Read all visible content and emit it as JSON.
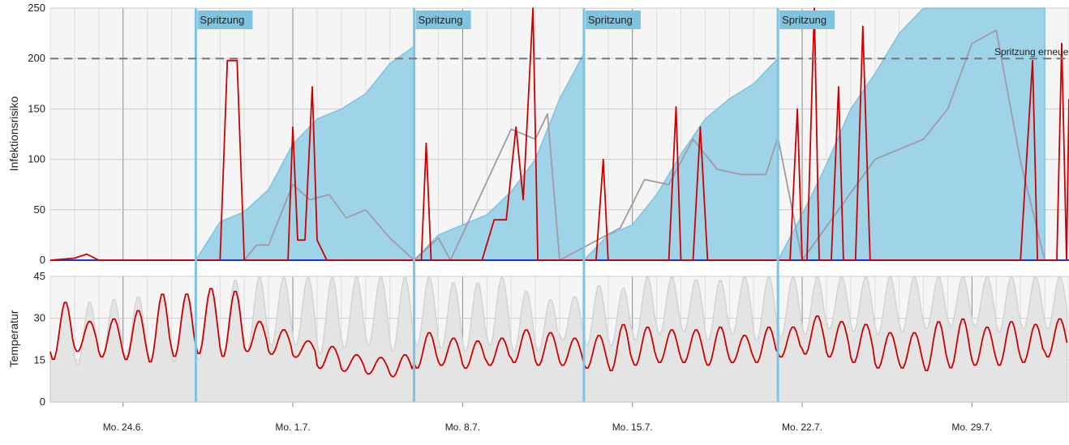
{
  "chart_data": [
    {
      "type": "area",
      "ylabel": "Infektionsrisiko",
      "ylim": [
        0,
        250
      ],
      "yticks": [
        0,
        50,
        100,
        150,
        200,
        250
      ],
      "xlim": [
        "2024-06-21",
        "2024-08-02"
      ],
      "threshold": {
        "value": 200,
        "label": "Spritzung erneuern"
      },
      "sprays": [
        {
          "date": "2024-06-27",
          "label": "Spritzung"
        },
        {
          "date": "2024-07-06",
          "label": "Spritzung"
        },
        {
          "date": "2024-07-13",
          "label": "Spritzung"
        },
        {
          "date": "2024-07-21",
          "label": "Spritzung"
        }
      ],
      "cumulative_risk": {
        "color": "#9fd3e8",
        "points": [
          [
            "2024-06-27",
            0
          ],
          [
            "2024-06-28",
            38
          ],
          [
            "2024-06-29",
            48
          ],
          [
            "2024-06-30",
            70
          ],
          [
            "2024-07-01",
            115
          ],
          [
            "2024-07-02",
            140
          ],
          [
            "2024-07-03",
            150
          ],
          [
            "2024-07-04",
            165
          ],
          [
            "2024-07-05",
            195
          ],
          [
            "2024-07-06",
            212
          ],
          [
            "2024-07-06",
            0
          ],
          [
            "2024-07-07",
            25
          ],
          [
            "2024-07-08",
            35
          ],
          [
            "2024-07-09",
            45
          ],
          [
            "2024-07-10",
            68
          ],
          [
            "2024-07-11",
            100
          ],
          [
            "2024-07-12",
            160
          ],
          [
            "2024-07-13",
            205
          ],
          [
            "2024-07-13",
            0
          ],
          [
            "2024-07-14",
            25
          ],
          [
            "2024-07-15",
            35
          ],
          [
            "2024-07-16",
            65
          ],
          [
            "2024-07-17",
            105
          ],
          [
            "2024-07-18",
            140
          ],
          [
            "2024-07-19",
            160
          ],
          [
            "2024-07-20",
            175
          ],
          [
            "2024-07-21",
            200
          ],
          [
            "2024-07-21",
            0
          ],
          [
            "2024-07-22",
            45
          ],
          [
            "2024-07-23",
            95
          ],
          [
            "2024-07-24",
            150
          ],
          [
            "2024-07-25",
            185
          ],
          [
            "2024-07-26",
            225
          ],
          [
            "2024-07-27",
            250
          ],
          [
            "2024-08-01",
            250
          ],
          [
            "2024-08-01",
            0
          ]
        ]
      },
      "series": [
        {
          "name": "",
          "color": "#cc0000",
          "points": [
            [
              "2024-06-21",
              0
            ],
            [
              "2024-06-22",
              2
            ],
            [
              "2024-06-22.5",
              6
            ],
            [
              "2024-06-23",
              0
            ],
            [
              "2024-06-27",
              0
            ],
            [
              "2024-06-28",
              0
            ],
            [
              "2024-06-28.3",
              198
            ],
            [
              "2024-06-28.7",
              198
            ],
            [
              "2024-06-29",
              0
            ],
            [
              "2024-06-30.8",
              0
            ],
            [
              "2024-07-01",
              132
            ],
            [
              "2024-07-01.2",
              20
            ],
            [
              "2024-07-01.5",
              20
            ],
            [
              "2024-07-01.8",
              172
            ],
            [
              "2024-07-02",
              20
            ],
            [
              "2024-07-02.4",
              0
            ],
            [
              "2024-07-06.3",
              0
            ],
            [
              "2024-07-06.5",
              116
            ],
            [
              "2024-07-06.7",
              0
            ],
            [
              "2024-07-08.8",
              0
            ],
            [
              "2024-07-09.3",
              40
            ],
            [
              "2024-07-09.8",
              40
            ],
            [
              "2024-07-10.2",
              132
            ],
            [
              "2024-07-10.5",
              60
            ],
            [
              "2024-07-10.9",
              250
            ],
            [
              "2024-07-11.1",
              0
            ],
            [
              "2024-07-13.5",
              0
            ],
            [
              "2024-07-13.8",
              100
            ],
            [
              "2024-07-14",
              0
            ],
            [
              "2024-07-16.5",
              0
            ],
            [
              "2024-07-16.8",
              152
            ],
            [
              "2024-07-17",
              0
            ],
            [
              "2024-07-17.5",
              0
            ],
            [
              "2024-07-17.8",
              132
            ],
            [
              "2024-07-18.1",
              0
            ],
            [
              "2024-07-21.5",
              0
            ],
            [
              "2024-07-21.8",
              150
            ],
            [
              "2024-07-22",
              0
            ],
            [
              "2024-07-22.2",
              0
            ],
            [
              "2024-07-22.5",
              250
            ],
            [
              "2024-07-22.7",
              0
            ],
            [
              "2024-07-23.2",
              0
            ],
            [
              "2024-07-23.5",
              172
            ],
            [
              "2024-07-23.7",
              0
            ],
            [
              "2024-07-24.2",
              0
            ],
            [
              "2024-07-24.5",
              232
            ],
            [
              "2024-07-24.8",
              0
            ],
            [
              "2024-07-31",
              0
            ],
            [
              "2024-07-31.5",
              198
            ],
            [
              "2024-07-31.7",
              0
            ],
            [
              "2024-08-01.5",
              0
            ],
            [
              "2024-08-01.7",
              215
            ],
            [
              "2024-08-01.9",
              0
            ],
            [
              "2024-08-02",
              160
            ]
          ]
        },
        {
          "name": "",
          "color": "#a09aa8",
          "points": [
            [
              "2024-06-29",
              0
            ],
            [
              "2024-06-29.5",
              15
            ],
            [
              "2024-06-30",
              15
            ],
            [
              "2024-07-01",
              75
            ],
            [
              "2024-07-01.7",
              60
            ],
            [
              "2024-07-02.5",
              65
            ],
            [
              "2024-07-03.2",
              42
            ],
            [
              "2024-07-04",
              50
            ],
            [
              "2024-07-05",
              22
            ],
            [
              "2024-07-06",
              0
            ],
            [
              "2024-07-07",
              22
            ],
            [
              "2024-07-07.5",
              0
            ],
            [
              "2024-07-10",
              130
            ],
            [
              "2024-07-11",
              120
            ],
            [
              "2024-07-11.5",
              145
            ],
            [
              "2024-07-12",
              0
            ],
            [
              "2024-07-14.5",
              32
            ],
            [
              "2024-07-15.5",
              80
            ],
            [
              "2024-07-16.5",
              75
            ],
            [
              "2024-07-17.5",
              120
            ],
            [
              "2024-07-18.5",
              90
            ],
            [
              "2024-07-19.5",
              85
            ],
            [
              "2024-07-20.5",
              85
            ],
            [
              "2024-07-21",
              122
            ],
            [
              "2024-07-22",
              0
            ],
            [
              "2024-07-25",
              100
            ],
            [
              "2024-07-26",
              110
            ],
            [
              "2024-07-27",
              120
            ],
            [
              "2024-07-28",
              150
            ],
            [
              "2024-07-29",
              215
            ],
            [
              "2024-07-30",
              228
            ],
            [
              "2024-07-31",
              98
            ],
            [
              "2024-08-01",
              0
            ]
          ]
        }
      ]
    },
    {
      "type": "line",
      "ylabel": "Temperatur",
      "ylim": [
        0,
        45
      ],
      "yticks": [
        0,
        15,
        30,
        45
      ],
      "xlim": [
        "2024-06-21",
        "2024-08-02"
      ],
      "xticks": [
        {
          "date": "2024-06-24",
          "label": "Mo. 24.6."
        },
        {
          "date": "2024-07-01",
          "label": "Mo. 1.7."
        },
        {
          "date": "2024-07-08",
          "label": "Mo. 8.7."
        },
        {
          "date": "2024-07-15",
          "label": "Mo. 15.7."
        },
        {
          "date": "2024-07-22",
          "label": "Mo. 22.7."
        },
        {
          "date": "2024-07-29",
          "label": "Mo. 29.7."
        }
      ],
      "series": [
        {
          "name": "",
          "color": "#cc0000",
          "daily_max": [
            36,
            29,
            30,
            33,
            39,
            39,
            41,
            40,
            29,
            26,
            22,
            20,
            17,
            16,
            17,
            25,
            23,
            22,
            23,
            26,
            25,
            23,
            24,
            28,
            27,
            26,
            26,
            27,
            24,
            27,
            27,
            31,
            29,
            28,
            25,
            25,
            29,
            30,
            27,
            29,
            28,
            30
          ],
          "daily_min": [
            15,
            18,
            16,
            15,
            14,
            16,
            17,
            16,
            18,
            17,
            16,
            12,
            11,
            10,
            9,
            12,
            13,
            12,
            13,
            14,
            13,
            13,
            12,
            11,
            13,
            14,
            14,
            13,
            14,
            14,
            16,
            17,
            16,
            14,
            12,
            12,
            11,
            12,
            13,
            13,
            14,
            16
          ]
        },
        {
          "name": "",
          "color": "#d3d3d3",
          "daily_max": [
            36,
            36,
            37,
            38,
            37,
            37,
            39,
            44,
            45,
            45,
            45,
            45,
            45,
            45,
            45,
            45,
            43,
            43,
            45,
            40,
            37,
            38,
            42,
            41,
            45,
            45,
            44,
            44,
            45,
            45,
            45,
            45,
            45,
            45,
            45,
            45,
            45,
            45,
            45,
            45,
            45,
            45
          ],
          "daily_min": [
            15,
            13,
            15,
            16,
            15,
            14,
            15,
            16,
            18,
            20,
            20,
            17,
            19,
            20,
            18,
            20,
            19,
            18,
            20,
            18,
            18,
            22,
            20,
            20,
            22,
            24,
            25,
            22,
            24,
            22,
            23,
            24,
            26,
            25,
            24,
            25,
            26,
            27,
            27,
            25,
            26,
            26
          ]
        }
      ]
    }
  ]
}
